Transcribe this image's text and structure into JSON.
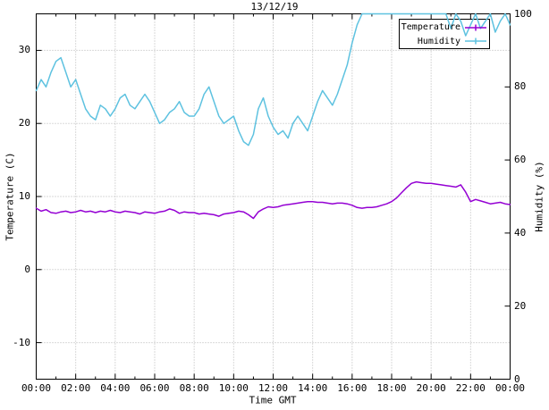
{
  "chart_data": {
    "type": "line",
    "title": "13/12/19",
    "xlabel": "Time GMT",
    "ylabel_left": "Temperature (C)",
    "ylabel_right": "Humidity (%)",
    "grid": true,
    "legend_position": "top-right-boxed",
    "x_range": [
      0,
      24
    ],
    "y_left_range": [
      -15,
      35
    ],
    "y_right_range": [
      0,
      100
    ],
    "x_minor_step": 1,
    "x_start": 0,
    "x_step": 0.25,
    "x_ticks": {
      "values": [
        0,
        2,
        4,
        6,
        8,
        10,
        12,
        14,
        16,
        18,
        20,
        22,
        24
      ],
      "labels": [
        "00:00",
        "02:00",
        "04:00",
        "06:00",
        "08:00",
        "10:00",
        "12:00",
        "14:00",
        "16:00",
        "18:00",
        "20:00",
        "22:00",
        "00:00"
      ]
    },
    "y_left_ticks": {
      "values": [
        -10,
        0,
        10,
        20,
        30
      ],
      "labels": [
        "-10",
        "0",
        "10",
        "20",
        "30"
      ]
    },
    "y_right_ticks": {
      "values": [
        0,
        20,
        40,
        60,
        80,
        100
      ],
      "labels": [
        "0",
        "20",
        "40",
        "60",
        "80",
        "100"
      ]
    },
    "colors": {
      "border": "#000000",
      "grid": "#b5b5b5",
      "temperature": "#9400d3",
      "humidity": "#5ec2e0"
    },
    "series": [
      {
        "name": "Temperature",
        "axis": "left",
        "color": "#9400d3",
        "values": [
          8.4,
          8.0,
          8.2,
          7.8,
          7.7,
          7.9,
          8.0,
          7.8,
          7.9,
          8.1,
          7.9,
          8.0,
          7.8,
          8.0,
          7.9,
          8.1,
          7.9,
          7.8,
          8.0,
          7.9,
          7.8,
          7.6,
          7.9,
          7.8,
          7.7,
          7.9,
          8.0,
          8.3,
          8.1,
          7.7,
          7.9,
          7.8,
          7.8,
          7.6,
          7.7,
          7.6,
          7.5,
          7.3,
          7.6,
          7.7,
          7.8,
          8.0,
          7.9,
          7.5,
          7.0,
          7.9,
          8.3,
          8.6,
          8.5,
          8.6,
          8.8,
          8.9,
          9.0,
          9.1,
          9.2,
          9.3,
          9.3,
          9.2,
          9.2,
          9.1,
          9.0,
          9.1,
          9.1,
          9.0,
          8.8,
          8.5,
          8.4,
          8.5,
          8.5,
          8.6,
          8.8,
          9.0,
          9.3,
          9.8,
          10.5,
          11.2,
          11.8,
          12.0,
          11.9,
          11.8,
          11.8,
          11.7,
          11.6,
          11.5,
          11.4,
          11.3,
          11.6,
          10.6,
          9.3,
          9.6,
          9.4,
          9.2,
          9.0,
          9.1,
          9.2,
          9.0,
          8.9
        ]
      },
      {
        "name": "Humidity",
        "axis": "right",
        "color": "#5ec2e0",
        "values": [
          79,
          82,
          80,
          84,
          87,
          88,
          84,
          80,
          82,
          78,
          74,
          72,
          71,
          75,
          74,
          72,
          74,
          77,
          78,
          75,
          74,
          76,
          78,
          76,
          73,
          70,
          71,
          73,
          74,
          76,
          73,
          72,
          72,
          74,
          78,
          80,
          76,
          72,
          70,
          71,
          72,
          68,
          65,
          64,
          67,
          74,
          77,
          72,
          69,
          67,
          68,
          66,
          70,
          72,
          70,
          68,
          72,
          76,
          79,
          77,
          75,
          78,
          82,
          86,
          92,
          97,
          100,
          100,
          100,
          100,
          100,
          100,
          100,
          100,
          100,
          100,
          100,
          100,
          100,
          100,
          100,
          100,
          100,
          100,
          96,
          100,
          98,
          94,
          97,
          100,
          96,
          98,
          100,
          95,
          98,
          100,
          97
        ]
      }
    ]
  }
}
